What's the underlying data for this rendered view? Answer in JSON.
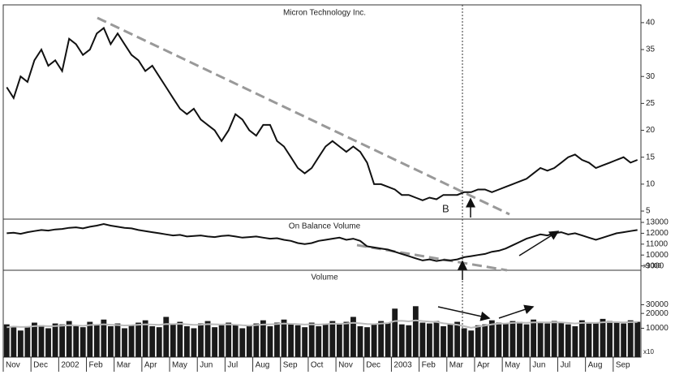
{
  "chart_data": [
    {
      "type": "line",
      "title": "Micron Technology Inc.",
      "color": "#111",
      "values": [
        28,
        26,
        30,
        29,
        33,
        35,
        32,
        33,
        31,
        37,
        36,
        34,
        35,
        38,
        39,
        36,
        38,
        36,
        34,
        33,
        31,
        32,
        30,
        28,
        26,
        24,
        23,
        24,
        22,
        21,
        20,
        18,
        20,
        23,
        22,
        20,
        19,
        21,
        21,
        18,
        17,
        15,
        13,
        12,
        13,
        15,
        17,
        18,
        17,
        16,
        17,
        16,
        14,
        10,
        10,
        9.5,
        9,
        8,
        8,
        7.5,
        7,
        7.5,
        7.2,
        8,
        8,
        8,
        8.5,
        8.5,
        9,
        9,
        8.5,
        9,
        9.5,
        10,
        10.5,
        11,
        12,
        13,
        12.5,
        13,
        14,
        15,
        15.5,
        14.5,
        14,
        13,
        13.5,
        14,
        14.5,
        15,
        14,
        14.5
      ],
      "ylim": [
        3.5,
        43.3
      ],
      "yticks": [
        5,
        10,
        15,
        20,
        25,
        30,
        35,
        40
      ],
      "annotations": [
        "B"
      ]
    },
    {
      "type": "line",
      "title": "On Balance Volume",
      "color": "#111",
      "unit_label": "x1000",
      "values": [
        12000,
        12050,
        11950,
        12100,
        12200,
        12300,
        12250,
        12350,
        12400,
        12500,
        12550,
        12450,
        12600,
        12700,
        12850,
        12700,
        12600,
        12500,
        12450,
        12300,
        12200,
        12100,
        12000,
        11900,
        11800,
        11850,
        11700,
        11750,
        11800,
        11700,
        11650,
        11750,
        11800,
        11700,
        11600,
        11650,
        11700,
        11600,
        11500,
        11550,
        11400,
        11300,
        11100,
        11000,
        11100,
        11300,
        11400,
        11500,
        11600,
        11400,
        11500,
        11300,
        10800,
        10700,
        10600,
        10500,
        10300,
        10100,
        9900,
        9700,
        9500,
        9600,
        9450,
        9550,
        9500,
        9600,
        9800,
        9900,
        10000,
        10100,
        10300,
        10400,
        10600,
        10900,
        11200,
        11500,
        11700,
        11900,
        11800,
        12000,
        12100,
        11900,
        12000,
        11800,
        11600,
        11400,
        11600,
        11800,
        12000,
        12100,
        12200,
        12300
      ],
      "ylim": [
        8600,
        13300
      ],
      "yticks": [
        9000,
        10000,
        11000,
        12000,
        13000
      ]
    },
    {
      "type": "bar",
      "title": "Volume",
      "color": "#1a1a1a",
      "unit_label": "x10",
      "log_scale": true,
      "categories": [
        "Nov",
        null,
        null,
        null,
        "Dec",
        null,
        null,
        null,
        "2002",
        null,
        null,
        null,
        "Feb",
        null,
        null,
        null,
        "Mar",
        null,
        null,
        null,
        "Apr",
        null,
        null,
        null,
        "May",
        null,
        null,
        null,
        "Jun",
        null,
        null,
        null,
        "Jul",
        null,
        null,
        null,
        "Aug",
        null,
        null,
        null,
        "Sep",
        null,
        null,
        null,
        "Oct",
        null,
        null,
        null,
        "Nov",
        null,
        null,
        null,
        "Dec",
        null,
        null,
        null,
        "2003",
        null,
        null,
        null,
        "Feb",
        null,
        null,
        null,
        "Mar",
        null,
        null,
        null,
        "Apr",
        null,
        null,
        null,
        "May",
        null,
        null,
        null,
        "Jun",
        null,
        null,
        null,
        "Jul",
        null,
        null,
        null,
        "Aug",
        null,
        null,
        null,
        "Sep",
        null,
        null,
        null
      ],
      "values": [
        12000,
        10500,
        9000,
        11000,
        13000,
        11500,
        10000,
        12500,
        12000,
        14000,
        11000,
        10500,
        13500,
        12000,
        15000,
        11000,
        12500,
        10000,
        11500,
        13000,
        14500,
        11000,
        10500,
        17000,
        12000,
        13500,
        11000,
        10000,
        12500,
        14000,
        10500,
        11500,
        13000,
        12000,
        10000,
        11000,
        12500,
        14500,
        11000,
        13000,
        15000,
        12000,
        11500,
        10500,
        13000,
        11000,
        12500,
        14000,
        12000,
        13500,
        17000,
        11000,
        10500,
        12000,
        14000,
        13000,
        25000,
        12000,
        11500,
        28000,
        13000,
        12500,
        14000,
        11000,
        12000,
        13500,
        10000,
        9000,
        11500,
        12000,
        14500,
        13000,
        12500,
        14000,
        13500,
        12000,
        15000,
        13000,
        12500,
        14000,
        13500,
        12000,
        11000,
        14500,
        13000,
        12500,
        15500,
        14000,
        13000,
        12500,
        14500,
        13500
      ],
      "average_color": "#bbbbbb",
      "average_values": [
        10500,
        10800,
        10600,
        10700,
        11000,
        11200,
        11000,
        11100,
        11300,
        11500,
        11400,
        11200,
        11600,
        11800,
        12000,
        11800,
        11600,
        11400,
        11500,
        11800,
        12000,
        11900,
        11700,
        12200,
        12100,
        12300,
        12000,
        11700,
        11800,
        12100,
        12000,
        11900,
        12000,
        11800,
        11500,
        11300,
        11600,
        11900,
        12000,
        12200,
        12500,
        12300,
        12100,
        11900,
        12000,
        11900,
        12100,
        12400,
        12300,
        12500,
        12900,
        12600,
        12200,
        12100,
        12500,
        12700,
        14000,
        14200,
        13800,
        14500,
        14000,
        13600,
        13400,
        12600,
        12200,
        11800,
        11000,
        10200,
        10800,
        11300,
        12000,
        12400,
        12500,
        12800,
        13000,
        12900,
        13100,
        13200,
        13100,
        13200,
        13100,
        12800,
        12500,
        12800,
        12900,
        12800,
        13200,
        13400,
        13300,
        13100,
        13300,
        13400
      ],
      "ylim": [
        2600,
        150000
      ],
      "yticks": [
        10000,
        20000,
        30000
      ]
    }
  ]
}
